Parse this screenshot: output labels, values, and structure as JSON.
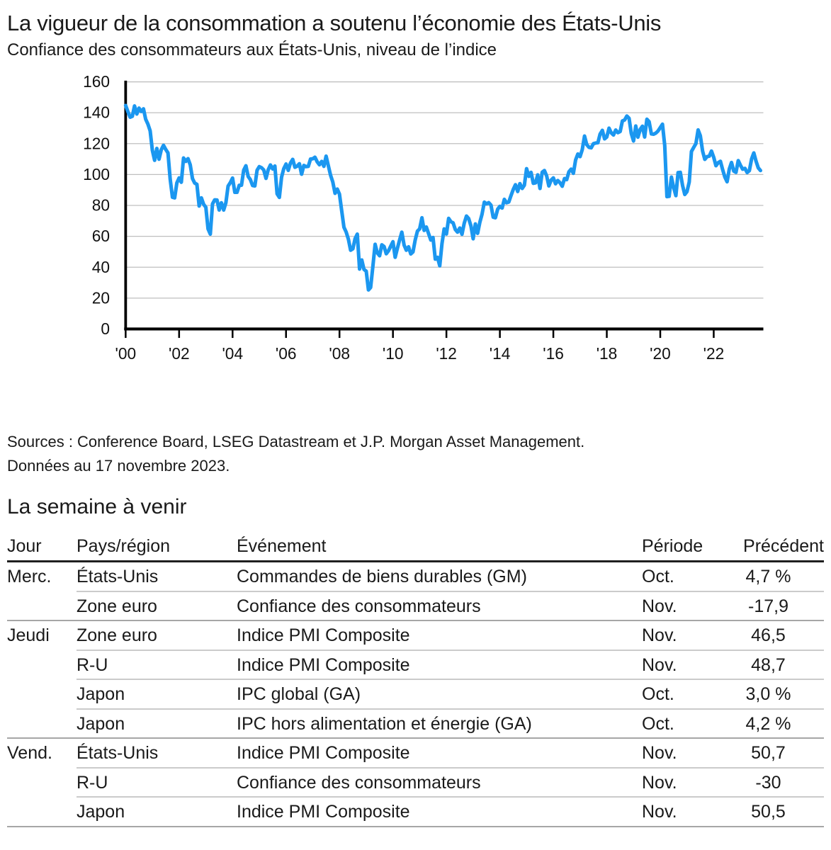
{
  "header": {
    "title": "La vigueur de la consommation a soutenu l’économie des États-Unis",
    "subtitle": "Confiance des consommateurs aux États-Unis, niveau de l’indice"
  },
  "chart": {
    "source_line1": "Sources : Conference Board, LSEG Datastream et J.P. Morgan Asset Management.",
    "source_line2": "Données au 17 novembre 2023."
  },
  "colors": {
    "line_blue": "#1B97F0",
    "grid_gray": "#bfbfbf",
    "axis_black": "#000000",
    "header_rule": "#1f1f1f",
    "row_rule_light": "#cbcbcb",
    "row_rule_dark": "#a6a6a6"
  },
  "chart_data": {
    "type": "line",
    "title": "La vigueur de la consommation a soutenu l’économie des États-Unis",
    "subtitle": "Confiance des consommateurs aux États-Unis, niveau de l’indice",
    "xlabel": "",
    "ylabel": "",
    "ylim": [
      0,
      160
    ],
    "y_ticks": [
      0,
      20,
      40,
      60,
      80,
      100,
      120,
      140,
      160
    ],
    "x_tick_labels": [
      "'00",
      "'02",
      "'04",
      "'06",
      "'08",
      "'10",
      "'12",
      "'14",
      "'16",
      "'18",
      "'20",
      "'22"
    ],
    "grid": "horizontal",
    "legend": "none",
    "line_color": "#1B97F0",
    "series": [
      {
        "name": "Confiance des consommateurs aux États-Unis, niveau de l’indice",
        "frequency": "monthly",
        "start": "2000-01",
        "end": "2023-10",
        "values": [
          144.7,
          140.8,
          137.1,
          137.7,
          144.4,
          139.2,
          143.0,
          140.8,
          142.5,
          135.8,
          132.6,
          128.3,
          115.7,
          109.2,
          116.9,
          109.9,
          116.1,
          118.9,
          116.3,
          114.0,
          97.0,
          85.3,
          84.9,
          94.6,
          97.8,
          95.0,
          110.7,
          108.5,
          110.3,
          106.3,
          97.4,
          94.5,
          93.7,
          79.6,
          84.9,
          80.7,
          78.8,
          64.8,
          61.4,
          81.0,
          83.6,
          83.5,
          77.0,
          81.7,
          77.0,
          81.7,
          92.5,
          94.8,
          97.7,
          88.5,
          88.5,
          93.0,
          93.1,
          102.8,
          105.7,
          98.7,
          96.7,
          92.9,
          92.6,
          102.7,
          105.1,
          104.4,
          103.0,
          97.5,
          103.1,
          106.2,
          103.6,
          105.5,
          87.5,
          85.2,
          98.3,
          103.8,
          106.8,
          102.7,
          107.5,
          109.8,
          104.7,
          105.4,
          107.0,
          100.2,
          105.9,
          105.1,
          105.3,
          110.0,
          110.2,
          111.2,
          108.2,
          106.3,
          108.5,
          105.3,
          111.9,
          105.6,
          99.5,
          95.2,
          87.8,
          90.6,
          87.3,
          76.4,
          65.9,
          62.8,
          58.1,
          51.0,
          51.9,
          58.5,
          61.4,
          38.8,
          44.7,
          38.6,
          37.4,
          25.3,
          26.9,
          40.8,
          54.8,
          49.3,
          47.4,
          54.5,
          53.4,
          48.7,
          50.6,
          53.6,
          56.5,
          46.4,
          52.3,
          57.7,
          62.7,
          54.3,
          51.0,
          53.2,
          48.6,
          49.9,
          57.8,
          63.4,
          64.8,
          72.0,
          63.8,
          66.0,
          61.7,
          57.6,
          59.2,
          45.2,
          46.4,
          40.9,
          55.2,
          64.8,
          61.5,
          71.6,
          69.5,
          68.7,
          64.4,
          62.7,
          65.4,
          61.3,
          68.4,
          73.1,
          71.5,
          66.7,
          58.4,
          68.0,
          61.9,
          69.0,
          74.3,
          82.1,
          81.0,
          81.8,
          80.2,
          72.4,
          72.0,
          77.5,
          79.4,
          78.3,
          83.9,
          81.7,
          82.2,
          86.4,
          90.3,
          93.4,
          89.0,
          94.1,
          91.0,
          93.1,
          103.8,
          98.8,
          101.4,
          94.3,
          94.6,
          99.8,
          91.0,
          101.5,
          102.6,
          99.1,
          92.6,
          96.3,
          97.8,
          94.0,
          96.1,
          94.7,
          92.4,
          97.4,
          96.7,
          101.8,
          103.5,
          100.8,
          109.4,
          113.3,
          111.6,
          116.1,
          124.9,
          119.4,
          117.6,
          117.3,
          120.0,
          120.4,
          120.6,
          126.2,
          128.6,
          123.1,
          124.3,
          130.0,
          127.0,
          125.6,
          128.8,
          127.1,
          127.9,
          134.7,
          135.3,
          137.9,
          136.4,
          126.6,
          121.7,
          131.4,
          124.2,
          129.2,
          131.3,
          124.3,
          135.8,
          134.2,
          126.3,
          126.1,
          126.8,
          128.2,
          130.4,
          132.6,
          118.8,
          85.7,
          85.9,
          98.3,
          91.7,
          86.3,
          101.3,
          101.4,
          92.9,
          87.1,
          88.9,
          95.2,
          114.9,
          117.5,
          120.0,
          128.9,
          125.1,
          115.2,
          109.8,
          111.6,
          111.9,
          115.2,
          111.1,
          105.7,
          107.6,
          108.6,
          103.2,
          98.4,
          95.3,
          103.6,
          107.8,
          102.2,
          101.4,
          109.0,
          106.0,
          103.4,
          104.0,
          101.3,
          102.5,
          110.1,
          114.0,
          108.7,
          104.3,
          102.6
        ]
      }
    ]
  },
  "week_ahead": {
    "heading": "La semaine à venir",
    "columns": [
      "Jour",
      "Pays/région",
      "Événement",
      "Période",
      "Précédent"
    ],
    "rows": [
      {
        "day": "Merc.",
        "region": "États-Unis",
        "event": "Commandes de biens durables (GM)",
        "period": "Oct.",
        "previous": "4,7 %"
      },
      {
        "day": "",
        "region": "Zone euro",
        "event": "Confiance des consommateurs",
        "period": "Nov.",
        "previous": "-17,9"
      },
      {
        "day": "Jeudi",
        "region": "Zone euro",
        "event": "Indice PMI Composite",
        "period": "Nov.",
        "previous": "46,5"
      },
      {
        "day": "",
        "region": "R-U",
        "event": "Indice PMI Composite",
        "period": "Nov.",
        "previous": "48,7"
      },
      {
        "day": "",
        "region": "Japon",
        "event": "IPC global (GA)",
        "period": "Oct.",
        "previous": "3,0 %"
      },
      {
        "day": "",
        "region": "Japon",
        "event": "IPC hors alimentation et énergie (GA)",
        "period": "Oct.",
        "previous": "4,2 %"
      },
      {
        "day": "Vend.",
        "region": "États-Unis",
        "event": "Indice PMI Composite",
        "period": "Nov.",
        "previous": "50,7"
      },
      {
        "day": "",
        "region": "R-U",
        "event": "Confiance des consommateurs",
        "period": "Nov.",
        "previous": "-30"
      },
      {
        "day": "",
        "region": "Japon",
        "event": "Indice PMI Composite",
        "period": "Nov.",
        "previous": "50,5"
      }
    ]
  }
}
